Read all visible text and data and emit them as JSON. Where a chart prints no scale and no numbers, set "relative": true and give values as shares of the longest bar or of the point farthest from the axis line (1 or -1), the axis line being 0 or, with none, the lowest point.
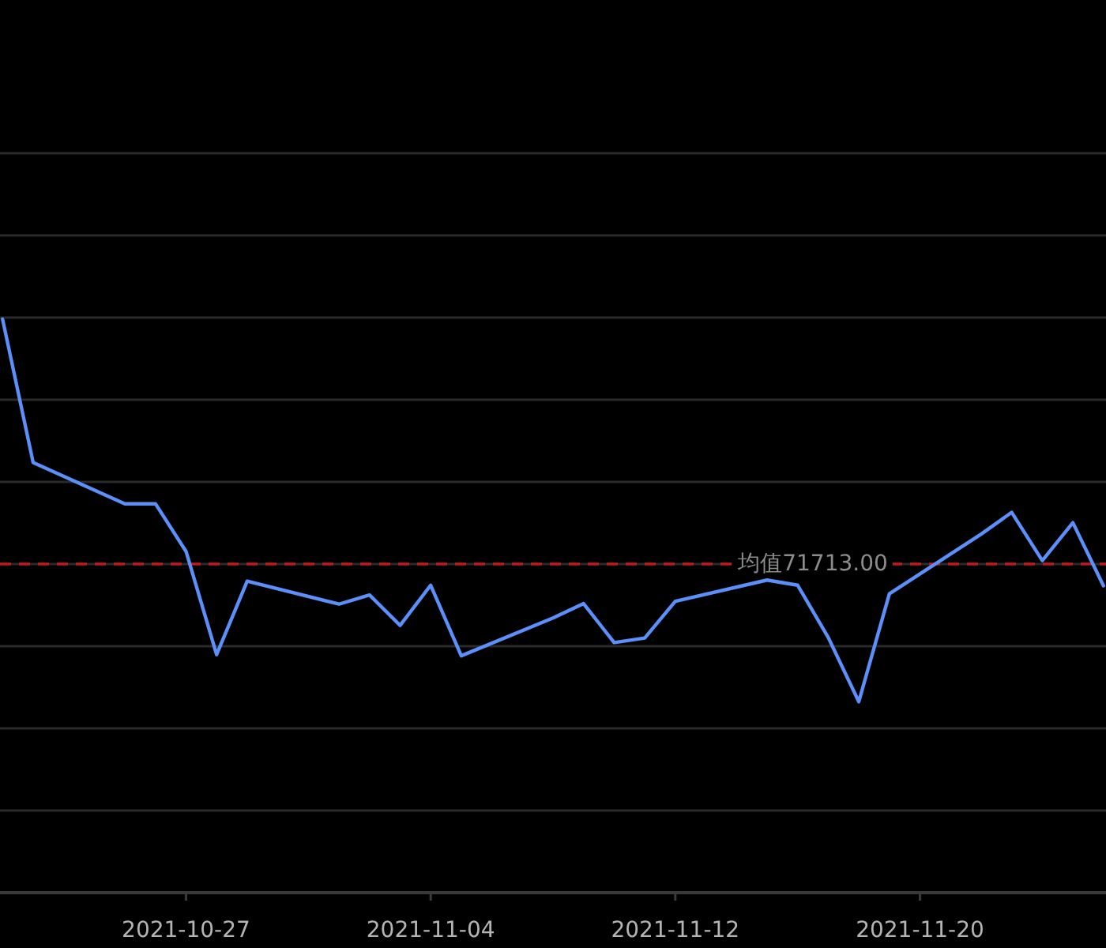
{
  "chart_data": {
    "type": "line",
    "relative": true,
    "x": [
      "2021-10-21",
      "2021-10-22",
      "2021-10-25",
      "2021-10-26",
      "2021-10-27",
      "2021-10-28",
      "2021-10-29",
      "2021-11-01",
      "2021-11-02",
      "2021-11-03",
      "2021-11-04",
      "2021-11-05",
      "2021-11-08",
      "2021-11-09",
      "2021-11-10",
      "2021-11-11",
      "2021-11-12",
      "2021-11-15",
      "2021-11-16",
      "2021-11-17",
      "2021-11-18",
      "2021-11-19",
      "2021-11-22",
      "2021-11-23",
      "2021-11-24",
      "2021-11-25",
      "2021-11-26"
    ],
    "values": [
      1.0,
      0.75,
      0.678,
      0.678,
      0.595,
      0.415,
      0.543,
      0.503,
      0.519,
      0.466,
      0.536,
      0.413,
      0.479,
      0.504,
      0.436,
      0.444,
      0.508,
      0.545,
      0.536,
      0.445,
      0.333,
      0.521,
      0.625,
      0.663,
      0.579,
      0.645,
      0.535
    ],
    "color": "#5b8ff9",
    "xlim": [
      "2021-10-20T22:00",
      "2021-11-26T02:00"
    ],
    "xticks": [
      "2021-10-27",
      "2021-11-04",
      "2021-11-12",
      "2021-11-20"
    ],
    "grid": "y",
    "ref_lines": [
      {
        "axis": "y",
        "value": 0.573,
        "label": "均值71713.00",
        "color": "#c8161d",
        "line_style": "dashed"
      }
    ]
  }
}
